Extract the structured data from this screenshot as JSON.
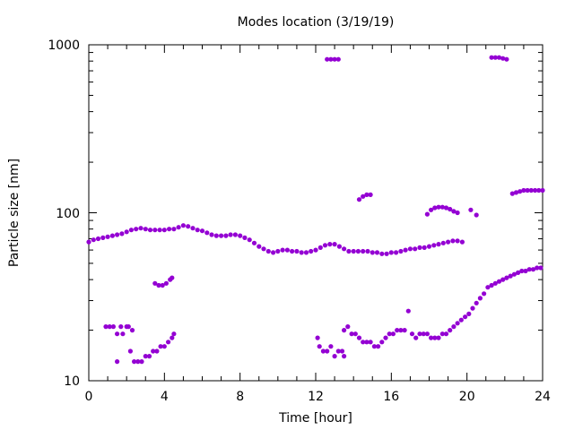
{
  "chart_data": {
    "type": "scatter",
    "title": "Modes location (3/19/19)",
    "xlabel": "Time [hour]",
    "ylabel": "Particle size [nm]",
    "xlim": [
      0,
      24
    ],
    "ylim": [
      10,
      1000
    ],
    "yscale": "log",
    "grid": false,
    "legend": "none",
    "x_ticks": [
      "0",
      "4",
      "8",
      "12",
      "16",
      "20",
      "24"
    ],
    "y_ticks": [
      "10",
      "100",
      "1000"
    ],
    "marker_color": "#9400d3",
    "series": [
      {
        "values": [
          [
            0.0,
            67
          ],
          [
            0.25,
            69
          ],
          [
            0.5,
            70
          ],
          [
            0.75,
            71
          ],
          [
            1.0,
            72
          ],
          [
            1.25,
            73
          ],
          [
            1.5,
            74
          ],
          [
            1.75,
            75
          ],
          [
            2.0,
            77
          ],
          [
            2.25,
            79
          ],
          [
            2.5,
            80
          ],
          [
            2.75,
            81
          ],
          [
            3.0,
            80
          ],
          [
            3.25,
            79
          ],
          [
            3.5,
            79
          ],
          [
            3.75,
            79
          ],
          [
            4.0,
            79
          ],
          [
            4.25,
            80
          ],
          [
            4.5,
            80
          ],
          [
            4.75,
            82
          ],
          [
            5.0,
            84
          ],
          [
            5.25,
            83
          ],
          [
            5.5,
            81
          ],
          [
            5.75,
            79
          ],
          [
            6.0,
            78
          ],
          [
            6.25,
            76
          ],
          [
            6.5,
            74
          ],
          [
            6.75,
            73
          ],
          [
            7.0,
            73
          ],
          [
            7.25,
            73
          ],
          [
            7.5,
            74
          ],
          [
            7.75,
            74
          ],
          [
            8.0,
            73
          ],
          [
            8.25,
            71
          ],
          [
            8.5,
            69
          ],
          [
            8.75,
            66
          ],
          [
            9.0,
            63
          ],
          [
            9.25,
            61
          ],
          [
            9.5,
            59
          ],
          [
            9.75,
            58
          ],
          [
            10.0,
            59
          ],
          [
            10.25,
            60
          ],
          [
            10.5,
            60
          ],
          [
            10.75,
            59
          ],
          [
            11.0,
            59
          ],
          [
            11.25,
            58
          ],
          [
            11.5,
            58
          ],
          [
            11.75,
            59
          ],
          [
            12.0,
            60
          ],
          [
            12.25,
            62
          ],
          [
            12.5,
            64
          ],
          [
            12.75,
            65
          ],
          [
            13.0,
            65
          ],
          [
            13.25,
            63
          ],
          [
            13.5,
            61
          ],
          [
            13.75,
            59
          ],
          [
            14.0,
            59
          ],
          [
            14.25,
            59
          ],
          [
            14.5,
            59
          ],
          [
            14.75,
            59
          ],
          [
            15.0,
            58
          ],
          [
            15.25,
            58
          ],
          [
            15.5,
            57
          ],
          [
            15.75,
            57
          ],
          [
            16.0,
            58
          ],
          [
            16.25,
            58
          ],
          [
            16.5,
            59
          ],
          [
            16.75,
            60
          ],
          [
            17.0,
            61
          ],
          [
            17.25,
            61
          ],
          [
            17.5,
            62
          ],
          [
            17.75,
            62
          ],
          [
            18.0,
            63
          ],
          [
            18.25,
            64
          ],
          [
            18.5,
            65
          ],
          [
            18.75,
            66
          ],
          [
            19.0,
            67
          ],
          [
            19.25,
            68
          ],
          [
            19.5,
            68
          ],
          [
            19.75,
            67
          ],
          [
            0.9,
            21
          ],
          [
            1.1,
            21
          ],
          [
            1.3,
            21
          ],
          [
            1.5,
            19
          ],
          [
            1.7,
            21
          ],
          [
            1.8,
            19
          ],
          [
            2.0,
            21
          ],
          [
            2.1,
            21
          ],
          [
            2.3,
            20
          ],
          [
            1.5,
            13
          ],
          [
            2.2,
            15
          ],
          [
            2.4,
            13
          ],
          [
            2.6,
            13
          ],
          [
            2.8,
            13
          ],
          [
            3.0,
            14
          ],
          [
            3.2,
            14
          ],
          [
            3.4,
            15
          ],
          [
            3.6,
            15
          ],
          [
            3.8,
            16
          ],
          [
            4.0,
            16
          ],
          [
            4.2,
            17
          ],
          [
            4.4,
            18
          ],
          [
            4.5,
            19
          ],
          [
            3.5,
            38
          ],
          [
            3.7,
            37
          ],
          [
            3.9,
            37
          ],
          [
            4.1,
            38
          ],
          [
            4.3,
            40
          ],
          [
            4.4,
            41
          ],
          [
            12.1,
            18
          ],
          [
            12.2,
            16
          ],
          [
            12.4,
            15
          ],
          [
            12.6,
            15
          ],
          [
            12.8,
            16
          ],
          [
            13.0,
            14
          ],
          [
            13.2,
            15
          ],
          [
            13.4,
            15
          ],
          [
            13.5,
            14
          ],
          [
            13.5,
            20
          ],
          [
            13.7,
            21
          ],
          [
            13.9,
            19
          ],
          [
            14.1,
            19
          ],
          [
            14.3,
            18
          ],
          [
            14.5,
            17
          ],
          [
            14.7,
            17
          ],
          [
            14.9,
            17
          ],
          [
            15.1,
            16
          ],
          [
            15.3,
            16
          ],
          [
            15.5,
            17
          ],
          [
            15.7,
            18
          ],
          [
            15.9,
            19
          ],
          [
            16.1,
            19
          ],
          [
            16.3,
            20
          ],
          [
            16.5,
            20
          ],
          [
            16.7,
            20
          ],
          [
            16.9,
            26
          ],
          [
            17.1,
            19
          ],
          [
            17.3,
            18
          ],
          [
            17.5,
            19
          ],
          [
            17.7,
            19
          ],
          [
            17.9,
            19
          ],
          [
            18.1,
            18
          ],
          [
            18.3,
            18
          ],
          [
            18.5,
            18
          ],
          [
            18.7,
            19
          ],
          [
            18.9,
            19
          ],
          [
            19.1,
            20
          ],
          [
            19.3,
            21
          ],
          [
            19.5,
            22
          ],
          [
            19.7,
            23
          ],
          [
            19.9,
            24
          ],
          [
            20.1,
            25
          ],
          [
            20.3,
            27
          ],
          [
            20.5,
            29
          ],
          [
            20.7,
            31
          ],
          [
            20.9,
            33
          ],
          [
            21.1,
            36
          ],
          [
            21.3,
            37
          ],
          [
            21.5,
            38
          ],
          [
            21.7,
            39
          ],
          [
            21.9,
            40
          ],
          [
            22.1,
            41
          ],
          [
            22.3,
            42
          ],
          [
            22.5,
            43
          ],
          [
            22.7,
            44
          ],
          [
            22.9,
            45
          ],
          [
            23.1,
            45
          ],
          [
            23.3,
            46
          ],
          [
            23.5,
            46
          ],
          [
            23.7,
            47
          ],
          [
            23.9,
            47
          ],
          [
            12.6,
            820
          ],
          [
            12.8,
            820
          ],
          [
            13.0,
            820
          ],
          [
            13.2,
            820
          ],
          [
            21.3,
            840
          ],
          [
            21.5,
            840
          ],
          [
            21.7,
            840
          ],
          [
            21.9,
            830
          ],
          [
            22.1,
            820
          ],
          [
            14.3,
            120
          ],
          [
            14.5,
            125
          ],
          [
            14.7,
            128
          ],
          [
            14.9,
            128
          ],
          [
            17.9,
            98
          ],
          [
            18.1,
            104
          ],
          [
            18.3,
            107
          ],
          [
            18.5,
            108
          ],
          [
            18.7,
            108
          ],
          [
            18.9,
            107
          ],
          [
            19.1,
            105
          ],
          [
            19.3,
            102
          ],
          [
            19.5,
            100
          ],
          [
            20.2,
            104
          ],
          [
            20.5,
            97
          ],
          [
            22.4,
            130
          ],
          [
            22.6,
            132
          ],
          [
            22.8,
            134
          ],
          [
            23.0,
            136
          ],
          [
            23.2,
            136
          ],
          [
            23.4,
            136
          ],
          [
            23.6,
            136
          ],
          [
            23.8,
            136
          ],
          [
            24.0,
            136
          ]
        ]
      }
    ]
  }
}
